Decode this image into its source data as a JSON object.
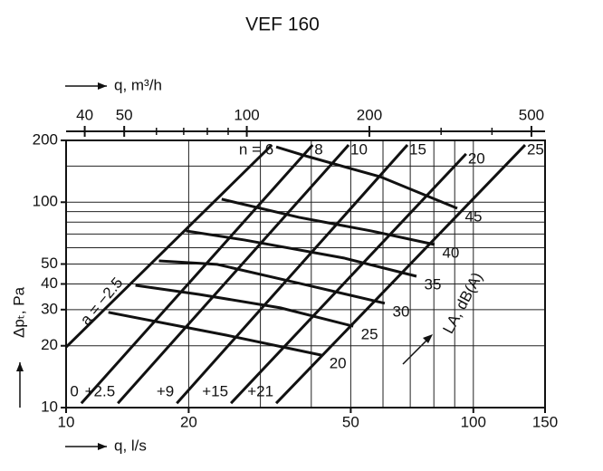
{
  "chart_data": {
    "type": "line",
    "title": "VEF 160",
    "x_label": "q, l/s",
    "x2_label": "q, m³/h",
    "y_label": "Δpₜ, Pa",
    "annotation": "LA, dB(A)",
    "log_x": true,
    "log_y": true,
    "xlim": [
      10,
      150
    ],
    "xticks": [
      10,
      20,
      50,
      100,
      150
    ],
    "xgrid": [
      10,
      20,
      30,
      40,
      50,
      60,
      70,
      80,
      90,
      100,
      150
    ],
    "x2lim": [
      36,
      540
    ],
    "x2ticks": [
      40,
      50,
      100,
      200,
      500
    ],
    "x2minor": [
      60,
      70,
      80,
      90,
      300,
      400
    ],
    "ylim": [
      10,
      200
    ],
    "yticks": [
      10,
      20,
      30,
      40,
      50,
      100,
      200
    ],
    "ygrid": [
      10,
      20,
      30,
      40,
      50,
      60,
      70,
      80,
      90,
      100,
      150,
      200
    ],
    "color": "#111111",
    "series": [
      {
        "name": "n = 6",
        "label_bottom": "a = −2.5",
        "x": [
          10,
          32.0
        ],
        "y": [
          19.7,
          190
        ]
      },
      {
        "name": "8",
        "label_bottom": "0",
        "x": [
          10.9,
          40.3
        ],
        "y": [
          10.5,
          190
        ]
      },
      {
        "name": "10",
        "label_bottom": "+2.5",
        "x": [
          13.4,
          49.4
        ],
        "y": [
          10.5,
          190
        ]
      },
      {
        "name": "15",
        "label_bottom": "+9",
        "x": [
          18.7,
          68.9
        ],
        "y": [
          10.5,
          190
        ]
      },
      {
        "name": "20",
        "label_bottom": "+15",
        "x": [
          25.4,
          96
        ],
        "y": [
          10.5,
          172
        ]
      },
      {
        "name": "25",
        "label_bottom": "+21",
        "x": [
          32.8,
          134
        ],
        "y": [
          10.5,
          190
        ]
      }
    ],
    "level_curves": [
      {
        "name": "45",
        "x": [
          32.8,
          39.2,
          59.1,
          91.3
        ],
        "y": [
          186,
          167,
          133,
          93.4
        ]
      },
      {
        "name": "40",
        "x": [
          24.1,
          37.3,
          56.1,
          80.3
        ],
        "y": [
          103.5,
          84.4,
          72.5,
          62.2
        ]
      },
      {
        "name": "35",
        "x": [
          19.7,
          27.4,
          48.1,
          72.5
        ],
        "y": [
          72.5,
          65.5,
          53.5,
          43.6
        ]
      },
      {
        "name": "30",
        "x": [
          16.9,
          23.5,
          39.2,
          60.6
        ],
        "y": [
          51.8,
          49.8,
          39.4,
          32.2
        ]
      },
      {
        "name": "25",
        "x": [
          14.8,
          21.2,
          33.6,
          50.7
        ],
        "y": [
          39.4,
          35.6,
          30.6,
          24.9
        ]
      },
      {
        "name": "20",
        "x": [
          12.7,
          24.8,
          42.4
        ],
        "y": [
          29.1,
          22.5,
          18.0
        ]
      }
    ]
  }
}
